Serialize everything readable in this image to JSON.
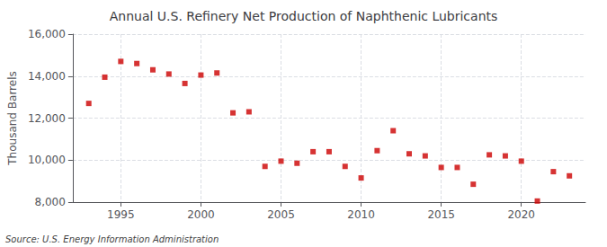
{
  "chart_data": {
    "type": "scatter",
    "title": "Annual U.S. Refinery Net Production of Naphthenic Lubricants",
    "ylabel": "Thousand Barrels",
    "annotations": [
      "Source: U.S. Energy Information Administration"
    ],
    "x": [
      1993,
      1994,
      1995,
      1996,
      1997,
      1998,
      1999,
      2000,
      2001,
      2002,
      2003,
      2004,
      2005,
      2006,
      2007,
      2008,
      2009,
      2010,
      2011,
      2012,
      2013,
      2014,
      2015,
      2016,
      2017,
      2018,
      2019,
      2020,
      2021,
      2022,
      2023
    ],
    "values": [
      12700,
      13950,
      14700,
      14600,
      14300,
      14100,
      13650,
      14050,
      14150,
      12250,
      12300,
      9700,
      9950,
      9850,
      10400,
      10400,
      9700,
      9150,
      10450,
      11400,
      10300,
      10200,
      9650,
      9650,
      8850,
      10250,
      10200,
      9950,
      8050,
      9450,
      9250
    ],
    "color": "#cc0000",
    "marker": "square",
    "xlim": [
      1992,
      2024
    ],
    "xticks": [
      1995,
      2000,
      2005,
      2010,
      2015,
      2020
    ],
    "ylim": [
      8000,
      16000
    ],
    "yticks": [
      {
        "value": 8000,
        "label": "8,000"
      },
      {
        "value": 10000,
        "label": "10,000"
      },
      {
        "value": 12000,
        "label": "12,000"
      },
      {
        "value": 14000,
        "label": "14,000"
      },
      {
        "value": 16000,
        "label": "16,000"
      }
    ],
    "grid": true
  }
}
